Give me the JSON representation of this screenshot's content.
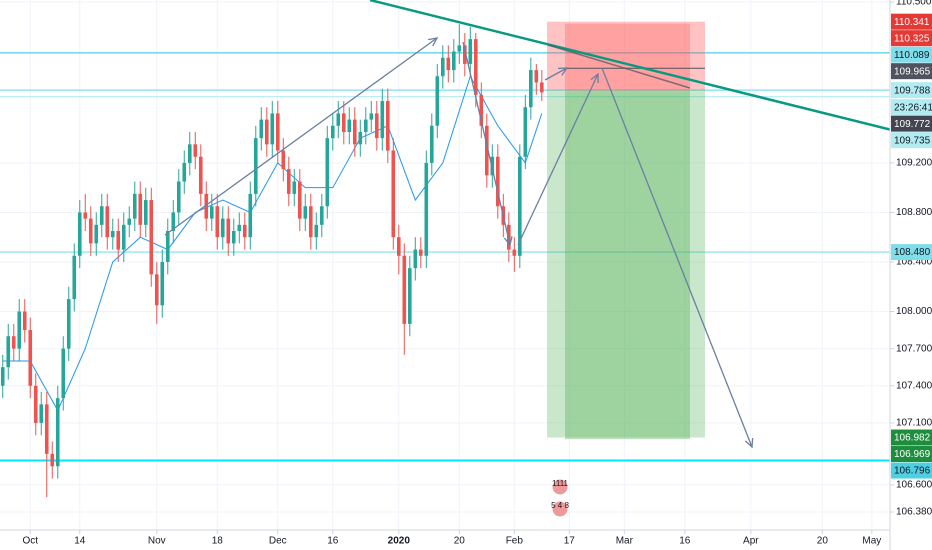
{
  "chart_data": {
    "type": "candlestick",
    "x": [
      -5,
      -4,
      -3,
      -2,
      -1,
      0,
      1,
      2,
      3,
      4,
      5,
      6,
      7,
      8,
      9,
      10,
      11,
      12,
      13,
      14,
      15,
      16,
      17,
      18,
      19,
      20,
      21,
      22,
      23,
      24,
      25,
      26,
      27,
      28,
      29,
      30,
      31,
      32,
      33,
      34,
      35,
      36,
      37,
      38,
      39,
      40,
      41,
      42,
      43,
      44,
      45,
      46,
      47,
      48,
      49,
      50,
      51,
      52,
      53,
      54,
      55,
      56,
      57,
      58,
      59,
      60,
      61,
      62,
      63,
      64,
      65,
      66,
      67,
      68,
      69,
      70,
      71,
      72,
      73,
      74,
      75,
      76,
      77,
      78,
      79,
      80,
      81,
      82,
      83,
      84,
      85,
      86,
      87,
      88,
      89,
      90,
      91,
      92,
      93
    ],
    "open": [
      107.4,
      107.55,
      107.8,
      107.7,
      108.0,
      107.85,
      107.4,
      107.1,
      107.25,
      106.85,
      106.75,
      107.3,
      107.7,
      108.1,
      108.45,
      108.8,
      108.75,
      108.55,
      108.7,
      108.85,
      108.6,
      108.65,
      108.5,
      108.7,
      108.75,
      108.95,
      108.7,
      108.9,
      108.3,
      108.05,
      108.4,
      108.65,
      108.8,
      109.05,
      109.2,
      109.35,
      109.25,
      108.95,
      108.75,
      108.85,
      108.6,
      108.75,
      108.55,
      108.65,
      108.7,
      108.6,
      108.95,
      109.4,
      109.55,
      109.35,
      109.6,
      109.3,
      109.15,
      108.95,
      109.05,
      108.75,
      108.85,
      108.6,
      108.7,
      108.85,
      109.4,
      109.5,
      109.6,
      109.45,
      109.55,
      109.35,
      109.45,
      109.55,
      109.6,
      109.4,
      109.7,
      109.3,
      108.6,
      108.45,
      107.9,
      108.35,
      108.5,
      108.45,
      109.2,
      109.5,
      109.9,
      110.05,
      109.95,
      110.1,
      110.15,
      110.0,
      110.2,
      109.75,
      109.5,
      109.1,
      109.25,
      108.85,
      108.7,
      108.5,
      108.45,
      109.25,
      109.65,
      109.95,
      109.85
    ],
    "high": [
      107.65,
      107.9,
      107.9,
      108.1,
      108.1,
      107.95,
      107.5,
      107.35,
      107.35,
      106.95,
      107.4,
      107.8,
      108.2,
      108.55,
      108.9,
      108.95,
      108.85,
      108.8,
      108.95,
      108.95,
      108.75,
      108.75,
      108.8,
      108.85,
      109.05,
      109.05,
      109.0,
      109.0,
      108.4,
      108.5,
      108.75,
      108.9,
      109.15,
      109.3,
      109.45,
      109.45,
      109.35,
      109.05,
      108.95,
      108.95,
      108.85,
      108.85,
      108.75,
      108.8,
      108.8,
      109.05,
      109.5,
      109.65,
      109.65,
      109.7,
      109.7,
      109.4,
      109.25,
      109.15,
      109.15,
      108.95,
      108.95,
      108.8,
      108.95,
      109.5,
      109.6,
      109.7,
      109.7,
      109.65,
      109.65,
      109.55,
      109.65,
      109.7,
      109.7,
      109.8,
      109.8,
      109.4,
      108.7,
      108.55,
      108.45,
      108.6,
      108.6,
      109.3,
      109.6,
      110.0,
      110.15,
      110.15,
      110.2,
      110.32,
      110.25,
      110.3,
      110.25,
      109.85,
      109.6,
      109.35,
      109.35,
      108.95,
      108.8,
      108.6,
      109.35,
      109.75,
      110.05,
      110.0,
      109.95
    ],
    "low": [
      107.3,
      107.45,
      107.6,
      107.6,
      107.75,
      107.3,
      107.0,
      107.0,
      106.5,
      106.65,
      106.65,
      107.2,
      107.6,
      108.0,
      108.35,
      108.65,
      108.45,
      108.45,
      108.6,
      108.5,
      108.5,
      108.4,
      108.4,
      108.6,
      108.65,
      108.6,
      108.6,
      108.2,
      107.9,
      107.95,
      108.3,
      108.55,
      108.7,
      108.95,
      109.1,
      109.15,
      108.85,
      108.65,
      108.65,
      108.5,
      108.5,
      108.45,
      108.45,
      108.55,
      108.5,
      108.5,
      108.85,
      109.3,
      109.25,
      109.25,
      109.2,
      109.05,
      108.85,
      108.85,
      108.65,
      108.65,
      108.5,
      108.5,
      108.6,
      108.75,
      109.3,
      109.4,
      109.35,
      109.35,
      109.25,
      109.25,
      109.35,
      109.45,
      109.3,
      109.3,
      109.2,
      108.5,
      108.3,
      107.65,
      107.8,
      108.25,
      108.35,
      108.35,
      109.1,
      109.4,
      109.8,
      109.85,
      109.85,
      110.0,
      109.9,
      109.9,
      109.65,
      109.4,
      109.0,
      109.0,
      108.75,
      108.6,
      108.4,
      108.32,
      108.35,
      109.15,
      109.55,
      109.75,
      109.7
    ],
    "close": [
      107.55,
      107.8,
      107.7,
      108.0,
      107.85,
      107.4,
      107.1,
      107.25,
      106.85,
      106.75,
      107.3,
      107.7,
      108.1,
      108.45,
      108.8,
      108.75,
      108.55,
      108.7,
      108.85,
      108.6,
      108.65,
      108.5,
      108.7,
      108.75,
      108.95,
      108.7,
      108.9,
      108.3,
      108.05,
      108.4,
      108.65,
      108.8,
      109.05,
      109.2,
      109.35,
      109.25,
      108.95,
      108.75,
      108.85,
      108.6,
      108.75,
      108.55,
      108.65,
      108.7,
      108.6,
      108.95,
      109.4,
      109.55,
      109.35,
      109.6,
      109.3,
      109.15,
      108.95,
      109.05,
      108.75,
      108.85,
      108.6,
      108.7,
      108.85,
      109.4,
      109.5,
      109.6,
      109.45,
      109.55,
      109.35,
      109.45,
      109.55,
      109.6,
      109.4,
      109.7,
      109.3,
      108.6,
      108.45,
      107.9,
      108.35,
      108.5,
      108.45,
      109.2,
      109.5,
      109.9,
      110.05,
      109.95,
      110.1,
      110.15,
      110.0,
      110.2,
      109.75,
      109.5,
      109.1,
      109.25,
      108.85,
      108.7,
      108.5,
      108.45,
      109.25,
      109.65,
      109.95,
      109.85,
      109.77
    ],
    "up_color": "#26a69a",
    "down_color": "#ef5350",
    "moving_average": {
      "color": "#2196f3",
      "x": [
        -5,
        0,
        5,
        10,
        15,
        20,
        25,
        30,
        35,
        40,
        45,
        50,
        55,
        60,
        65,
        70,
        75,
        80,
        85,
        90,
        93
      ],
      "values": [
        107.6,
        107.6,
        107.2,
        107.7,
        108.4,
        108.6,
        108.5,
        108.8,
        108.9,
        108.8,
        109.2,
        109.0,
        109.0,
        109.4,
        109.5,
        108.9,
        109.2,
        109.9,
        109.5,
        109.2,
        109.6
      ]
    },
    "xlim": [
      -5.5,
      156.3
    ],
    "xticks": [
      {
        "value": 0,
        "label": "Oct"
      },
      {
        "value": 9,
        "label": "14"
      },
      {
        "value": 23,
        "label": "Nov"
      },
      {
        "value": 34,
        "label": "18"
      },
      {
        "value": 45,
        "label": "Dec"
      },
      {
        "value": 55,
        "label": "16"
      },
      {
        "value": 67,
        "label": "2020"
      },
      {
        "value": 78,
        "label": "20"
      },
      {
        "value": 88,
        "label": "Feb"
      },
      {
        "value": 98,
        "label": "17"
      },
      {
        "value": 108,
        "label": "Mar"
      },
      {
        "value": 119,
        "label": "16"
      },
      {
        "value": 131,
        "label": "Apr"
      },
      {
        "value": 144,
        "label": "20"
      },
      {
        "value": 153,
        "label": "May"
      }
    ],
    "ylim": [
      106.235,
      110.516
    ],
    "yticks": [
      {
        "value": 110.5,
        "label": "110.500"
      },
      {
        "value": 109.2,
        "label": "109.200"
      },
      {
        "value": 108.8,
        "label": "108.800"
      },
      {
        "value": 108.4,
        "label": "108.400"
      },
      {
        "value": 108.0,
        "label": "108.000"
      },
      {
        "value": 107.7,
        "label": "107.700"
      },
      {
        "value": 107.4,
        "label": "107.400"
      },
      {
        "value": 107.1,
        "label": "107.100"
      },
      {
        "value": 106.6,
        "label": "106.600"
      },
      {
        "value": 106.38,
        "label": "106.380"
      }
    ],
    "grid": true,
    "price_labels": [
      {
        "value": 110.341,
        "label": "110.341",
        "color": "#e53935",
        "text_color": "#ffffff"
      },
      {
        "value": 110.325,
        "label": "110.325",
        "color": "#e53935",
        "text_color": "#ffffff"
      },
      {
        "value": 110.089,
        "label": "110.089",
        "color": "#80deea",
        "text_color": "#131722",
        "line": "#4dd0e1"
      },
      {
        "value": 109.965,
        "label": "109.965",
        "color": "#50535e",
        "text_color": "#ffffff"
      },
      {
        "value": 109.788,
        "label": "109.788",
        "color": "#b2ebf2",
        "text_color": "#131722",
        "line": "#80deea"
      },
      {
        "label": "23:26:41",
        "color": "#b2ebf2",
        "text_color": "#131722"
      },
      {
        "value": 109.772,
        "label": "109.772",
        "color": "#434651",
        "text_color": "#ffffff"
      },
      {
        "value": 109.735,
        "label": "109.735",
        "color": "#b2ebf2",
        "text_color": "#131722",
        "line": "#b2ebf2"
      },
      {
        "value": 108.48,
        "label": "108.480",
        "color": "#80deea",
        "text_color": "#131722",
        "line": "#80deea"
      },
      {
        "value": 106.982,
        "label": "106.982",
        "color": "#1e8e3e",
        "text_color": "#ffffff"
      },
      {
        "value": 106.969,
        "label": "106.969",
        "color": "#1e8e3e",
        "text_color": "#ffffff"
      },
      {
        "value": 106.796,
        "label": "106.796",
        "color": "#4dd0e1",
        "text_color": "#131722",
        "line": "#00e5ff"
      }
    ],
    "events": [
      "1111",
      "5 4 8"
    ]
  }
}
